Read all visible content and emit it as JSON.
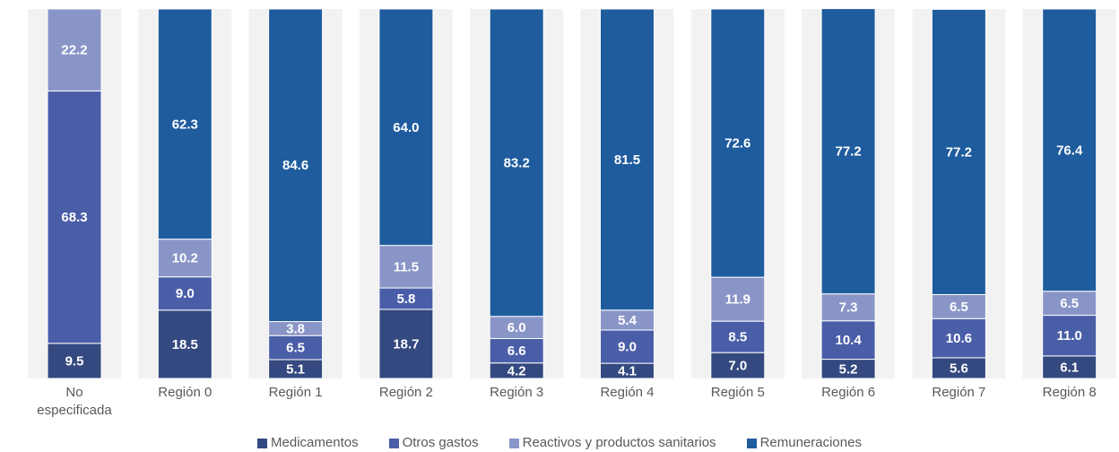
{
  "chart_data": {
    "type": "stacked_bar",
    "categories": [
      "No especificada",
      "Región 0",
      "Región 1",
      "Región 2",
      "Región 3",
      "Región 4",
      "Región 5",
      "Región 6",
      "Región 7",
      "Región 8"
    ],
    "ylim": [
      0,
      100
    ],
    "series": [
      {
        "name": "Medicamentos",
        "color": "#34497f",
        "values": [
          9.5,
          18.5,
          5.1,
          18.7,
          4.2,
          4.1,
          7.0,
          5.2,
          5.6,
          6.1
        ],
        "value_labels": [
          "9.5",
          "18.5",
          "5.1",
          "18.7",
          "4.2",
          "4.1",
          "7.0",
          "5.2",
          "5.6",
          "6.1"
        ]
      },
      {
        "name": "Otros gastos",
        "color": "#4a5ea8",
        "values": [
          68.3,
          9.0,
          6.5,
          5.8,
          6.6,
          9.0,
          8.5,
          10.4,
          10.6,
          11.0
        ],
        "value_labels": [
          "68.3",
          "9.0",
          "6.5",
          "5.8",
          "6.6",
          "9.0",
          "8.5",
          "10.4",
          "10.6",
          "11.0"
        ]
      },
      {
        "name": "Reactivos y productos sanitarios",
        "color": "#8a95c7",
        "values": [
          22.2,
          10.2,
          3.8,
          11.5,
          6.0,
          5.4,
          11.9,
          7.3,
          6.5,
          6.5
        ],
        "value_labels": [
          "22.2",
          "10.2",
          "3.8",
          "11.5",
          "6.0",
          "5.4",
          "11.9",
          "7.3",
          "6.5",
          "6.5"
        ]
      },
      {
        "name": "Remuneraciones",
        "color": "#1f5c9e",
        "values": [
          null,
          62.3,
          84.6,
          64.0,
          83.2,
          81.5,
          72.6,
          77.2,
          77.2,
          76.4
        ],
        "value_labels": [
          null,
          "62.3",
          "84.6",
          "64.0",
          "83.2",
          "81.5",
          "72.6",
          "77.2",
          "77.2",
          "76.4"
        ]
      }
    ]
  }
}
